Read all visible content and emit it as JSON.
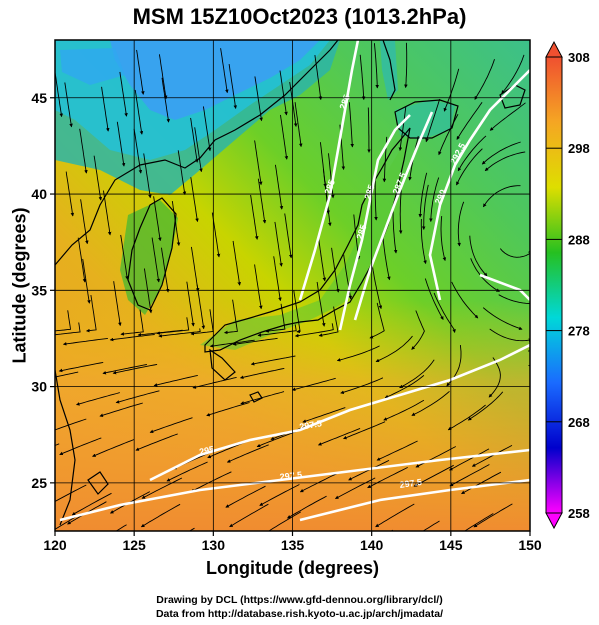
{
  "title": "MSM 15Z10Oct2023 (1013.2hPa)",
  "x_axis": {
    "label": "Longitude (degrees)",
    "ticks": [
      120,
      125,
      130,
      135,
      140,
      145,
      150
    ],
    "range": [
      120,
      150
    ]
  },
  "y_axis": {
    "label": "Latitude  (degrees)",
    "ticks": [
      25,
      30,
      35,
      40,
      45
    ],
    "range": [
      22.5,
      48
    ]
  },
  "colorbar": {
    "ticks": [
      258,
      268,
      278,
      288,
      298,
      308
    ],
    "range": [
      258,
      308
    ],
    "colors": [
      "#ff00ff",
      "#0000cc",
      "#1a6bff",
      "#00d8d8",
      "#26c020",
      "#dede00",
      "#f5a623",
      "#f05030"
    ]
  },
  "contour_labels": [
    "285",
    "285",
    "285",
    "285",
    "287.5",
    "290",
    "292.5",
    "295",
    "297.5",
    "297.5",
    "297.5"
  ],
  "field": "temperature (K) with streamlines",
  "credits": {
    "line1": "Drawing by DCL (https://www.gfd-dennou.org/library/dcl/)",
    "line2": "Data from http://database.rish.kyoto-u.ac.jp/arch/jmadata/"
  }
}
